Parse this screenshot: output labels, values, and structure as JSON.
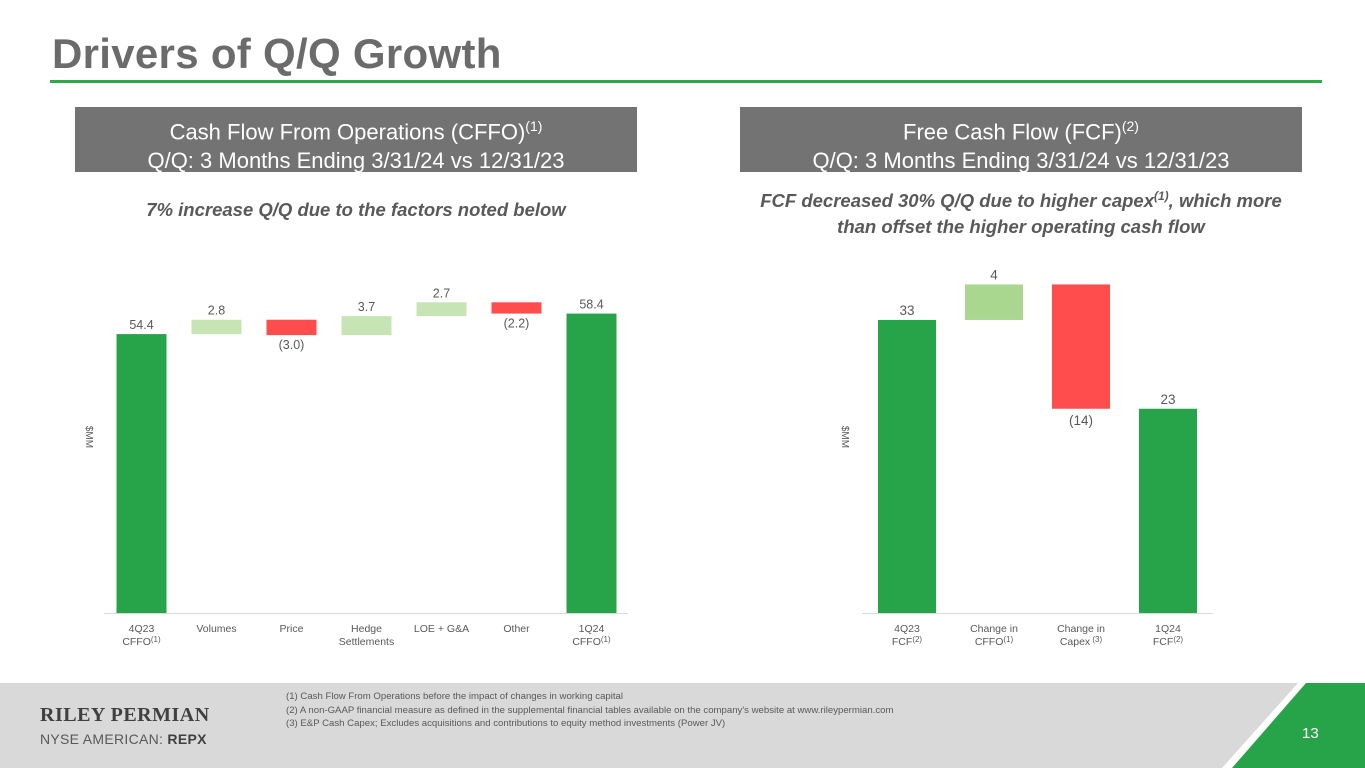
{
  "page": {
    "title": "Drivers of Q/Q Growth",
    "page_number": "13",
    "brand": "RILEY PERMIAN",
    "ticker_prefix": "NYSE AMERICAN: ",
    "ticker": "REPX",
    "footnotes": [
      "(1)  Cash Flow From Operations before the impact of changes in working capital",
      "(2)  A non-GAAP financial measure as defined in the supplemental financial tables available on the company's website at www.rileypermian.com",
      "(3)  E&P Cash Capex; Excludes acquisitions and contributions to equity method investments (Power JV)"
    ]
  },
  "left_panel": {
    "header_line1": "Cash Flow From Operations (CFFO)",
    "header_sup": "(1)",
    "header_line2": "Q/Q: 3 Months Ending 3/31/24 vs 12/31/23",
    "subtitle": "7% increase Q/Q due to the factors noted below"
  },
  "right_panel": {
    "header_line1": "Free Cash Flow (FCF)",
    "header_sup": "(2)",
    "header_line2": "Q/Q: 3 Months Ending 3/31/24 vs 12/31/23",
    "subtitle_part1": "FCF decreased 30% Q/Q due to higher capex",
    "subtitle_sup": "(1)",
    "subtitle_part2": ", which more",
    "subtitle_line2": "than offset the higher operating cash flow"
  },
  "colors": {
    "total": "#27a449",
    "increase": "#c7e4b4",
    "decrease": "#ff4d4d",
    "increase_right": "#a9d78f"
  },
  "chart_data": [
    {
      "type": "bar",
      "subtype": "waterfall",
      "ylabel": "$MM",
      "ylim": [
        0,
        62
      ],
      "categories": [
        {
          "label": "4Q23",
          "label2": "CFFO",
          "sup": "(1)"
        },
        {
          "label": "Volumes",
          "label2": "",
          "sup": ""
        },
        {
          "label": "Price",
          "label2": "",
          "sup": ""
        },
        {
          "label": "Hedge",
          "label2": "Settlements",
          "sup": ""
        },
        {
          "label": "LOE + G&A",
          "label2": "",
          "sup": ""
        },
        {
          "label": "Other",
          "label2": "",
          "sup": ""
        },
        {
          "label": "1Q24",
          "label2": "CFFO",
          "sup": "(1)"
        }
      ],
      "values": [
        54.4,
        2.8,
        -3.0,
        3.7,
        2.7,
        -2.2,
        58.4
      ],
      "kinds": [
        "total",
        "delta",
        "delta",
        "delta",
        "delta",
        "delta",
        "total"
      ],
      "data_labels": [
        "54.4",
        "2.8",
        "(3.0)",
        "3.7",
        "2.7",
        "(2.2)",
        "58.4"
      ]
    },
    {
      "type": "bar",
      "subtype": "waterfall",
      "ylabel": "$MM",
      "ylim": [
        0,
        39
      ],
      "categories": [
        {
          "label": "4Q23",
          "label2": "FCF",
          "sup": "(2)"
        },
        {
          "label": "Change in",
          "label2": "CFFO",
          "sup": "(1)"
        },
        {
          "label": "Change in",
          "label2": "Capex",
          "sup": " (3)"
        },
        {
          "label": "1Q24",
          "label2": "FCF",
          "sup": "(2)"
        }
      ],
      "values": [
        33,
        4,
        -14,
        23
      ],
      "kinds": [
        "total",
        "delta",
        "delta",
        "total"
      ],
      "data_labels": [
        "33",
        "4",
        "(14)",
        "23"
      ]
    }
  ]
}
